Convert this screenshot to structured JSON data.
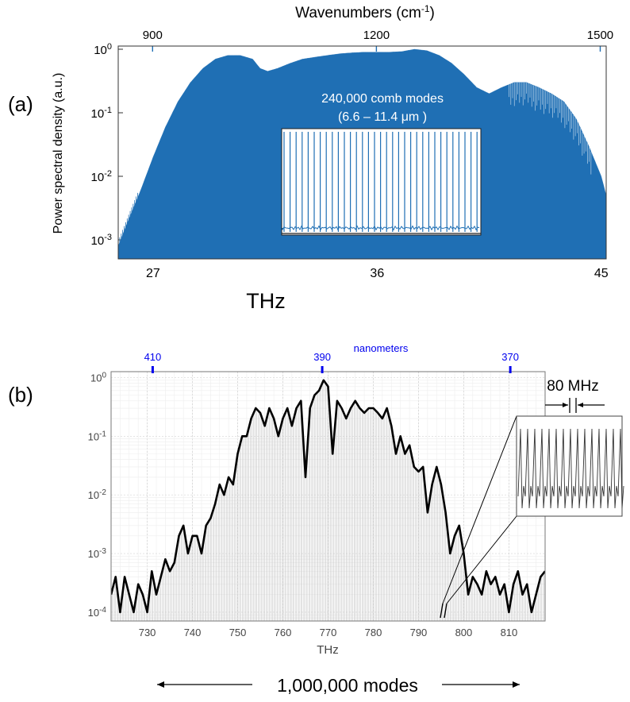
{
  "chart_data": [
    {
      "type": "area",
      "panel_label": "(a)",
      "title_top": "Wavenumbers (cm",
      "title_top_sup": "-1",
      "title_top_close": ")",
      "xlabel": "THz",
      "ylabel": "Power spectral density (a.u.)",
      "xlim": [
        25.6,
        45.2
      ],
      "ylim_log10": [
        -3.3,
        0.05
      ],
      "x_ticks": [
        27,
        36,
        45
      ],
      "x_tick_labels": [
        "27",
        "36",
        "45"
      ],
      "top_ticks": [
        26.98,
        35.97,
        44.96
      ],
      "top_tick_labels": [
        "900",
        "1200",
        "1500"
      ],
      "y_ticks_exp": [
        0,
        -1,
        -2,
        -3
      ],
      "y_tick_base": "10",
      "y_tick_exps": [
        "0",
        "-1",
        "-2",
        "-3"
      ],
      "envelope": {
        "x": [
          25.6,
          26.0,
          26.5,
          27.0,
          27.5,
          28.0,
          28.5,
          29.0,
          29.5,
          30.0,
          30.5,
          31.0,
          31.3,
          31.6,
          32.0,
          32.5,
          33.0,
          33.5,
          34.0,
          34.5,
          35.0,
          35.5,
          36.0,
          36.5,
          37.0,
          37.5,
          38.0,
          38.5,
          39.0,
          39.5,
          40.0,
          40.5,
          41.0,
          41.5,
          42.0,
          42.5,
          43.0,
          43.5,
          44.0,
          44.5,
          45.0,
          45.2
        ],
        "y": [
          0.0008,
          0.002,
          0.006,
          0.02,
          0.06,
          0.15,
          0.3,
          0.5,
          0.7,
          0.8,
          0.8,
          0.7,
          0.5,
          0.45,
          0.5,
          0.6,
          0.7,
          0.75,
          0.8,
          0.85,
          0.88,
          0.9,
          0.9,
          0.9,
          0.92,
          1.0,
          0.95,
          0.8,
          0.6,
          0.4,
          0.25,
          0.2,
          0.25,
          0.3,
          0.3,
          0.25,
          0.2,
          0.15,
          0.08,
          0.03,
          0.01,
          0.005
        ]
      },
      "annotation_line1": "240,000 comb modes",
      "annotation_line2": "(6.6 – 11.4 μm )",
      "fill_color": "#1f6fb4"
    },
    {
      "type": "area",
      "panel_label": "(b)",
      "xlabel": "THz",
      "xlim": [
        722,
        818
      ],
      "ylim_log10": [
        -4.15,
        0.1
      ],
      "x_ticks": [
        730,
        740,
        750,
        760,
        770,
        780,
        790,
        800,
        810
      ],
      "x_tick_labels": [
        "730",
        "740",
        "750",
        "760",
        "770",
        "780",
        "790",
        "800",
        "810"
      ],
      "top_axis_label": "nanometers",
      "top_ticks": [
        731.2,
        768.7,
        810.3
      ],
      "top_tick_labels": [
        "410",
        "390",
        "370"
      ],
      "y_ticks_exp": [
        0,
        -1,
        -2,
        -3,
        -4
      ],
      "y_tick_base": "10",
      "y_tick_exps": [
        "0",
        "-1",
        "-2",
        "-3",
        "-4"
      ],
      "envelope": {
        "x": [
          722,
          723,
          724,
          725,
          726,
          727,
          728,
          729,
          730,
          731,
          732,
          733,
          734,
          735,
          736,
          737,
          738,
          739,
          740,
          741,
          742,
          743,
          744,
          745,
          746,
          747,
          748,
          749,
          750,
          751,
          752,
          753,
          754,
          755,
          756,
          757,
          758,
          759,
          760,
          761,
          762,
          763,
          764,
          765,
          766,
          767,
          768,
          769,
          770,
          771,
          772,
          773,
          774,
          775,
          776,
          777,
          778,
          779,
          780,
          781,
          782,
          783,
          784,
          785,
          786,
          787,
          788,
          789,
          790,
          791,
          792,
          793,
          794,
          795,
          796,
          797,
          798,
          799,
          800,
          801,
          802,
          803,
          804,
          805,
          806,
          807,
          808,
          809,
          810,
          811,
          812,
          813,
          814,
          815,
          816,
          817,
          818
        ],
        "y": [
          0.0002,
          0.0004,
          0.0001,
          0.0004,
          0.0002,
          0.0001,
          0.0003,
          0.0002,
          0.0001,
          0.0005,
          0.0002,
          0.0004,
          0.0008,
          0.0005,
          0.0007,
          0.002,
          0.003,
          0.001,
          0.002,
          0.002,
          0.001,
          0.003,
          0.004,
          0.007,
          0.015,
          0.01,
          0.02,
          0.015,
          0.05,
          0.1,
          0.1,
          0.2,
          0.3,
          0.25,
          0.15,
          0.3,
          0.2,
          0.1,
          0.2,
          0.3,
          0.15,
          0.3,
          0.4,
          0.02,
          0.3,
          0.5,
          0.6,
          0.9,
          0.7,
          0.05,
          0.4,
          0.3,
          0.2,
          0.3,
          0.4,
          0.3,
          0.25,
          0.3,
          0.3,
          0.25,
          0.2,
          0.3,
          0.15,
          0.05,
          0.1,
          0.05,
          0.07,
          0.03,
          0.025,
          0.03,
          0.005,
          0.015,
          0.03,
          0.015,
          0.005,
          0.001,
          0.002,
          0.003,
          0.001,
          0.0002,
          0.0004,
          0.0003,
          0.0002,
          0.0005,
          0.0003,
          0.0004,
          0.0002,
          0.0003,
          0.0001,
          0.0003,
          0.0005,
          0.0002,
          0.0003,
          0.0001,
          0.0002,
          0.0004,
          0.0005
        ]
      },
      "inset_label": "80 MHz",
      "bottom_label": "1,000,000 modes",
      "line_color": "#000000",
      "top_color": "#0000ee"
    }
  ]
}
